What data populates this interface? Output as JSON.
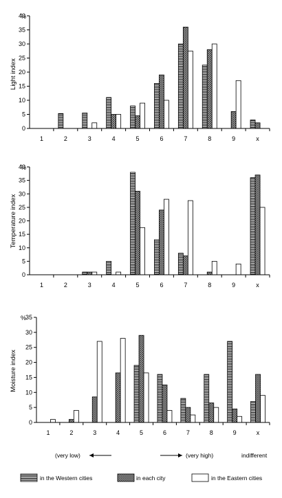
{
  "chart_data": [
    {
      "type": "bar",
      "ylabel": "Light index",
      "unit_label": "%",
      "ylim": [
        0,
        40
      ],
      "yticks": [
        0,
        5,
        10,
        15,
        20,
        25,
        30,
        35,
        40
      ],
      "categories": [
        "1",
        "2",
        "3",
        "4",
        "5",
        "6",
        "7",
        "8",
        "9",
        "x"
      ],
      "series": [
        {
          "name": "in the Western cities",
          "values": [
            0,
            5.3,
            5.5,
            11,
            8,
            16,
            30,
            22.5,
            0,
            3
          ]
        },
        {
          "name": "in each city",
          "values": [
            0,
            0,
            0,
            5,
            4.5,
            19,
            36,
            28,
            6,
            2
          ]
        },
        {
          "name": "in the Eastern cities",
          "values": [
            0,
            0,
            2,
            5,
            9,
            10,
            27.5,
            30,
            17,
            0
          ]
        }
      ]
    },
    {
      "type": "bar",
      "ylabel": "Temperature index",
      "unit_label": "%",
      "ylim": [
        0,
        40
      ],
      "yticks": [
        0,
        5,
        10,
        15,
        20,
        25,
        30,
        35,
        40
      ],
      "categories": [
        "1",
        "2",
        "3",
        "4",
        "5",
        "6",
        "7",
        "8",
        "9",
        "x"
      ],
      "series": [
        {
          "name": "in the Western cities",
          "values": [
            0,
            0,
            1,
            5,
            38,
            13,
            8,
            0,
            0,
            36
          ]
        },
        {
          "name": "in each city",
          "values": [
            0,
            0,
            1,
            0,
            31,
            24,
            7,
            1,
            0,
            37
          ]
        },
        {
          "name": "in the Eastern cities",
          "values": [
            0,
            0,
            1,
            1,
            17.5,
            28,
            27.5,
            5,
            4,
            25
          ]
        }
      ]
    },
    {
      "type": "bar",
      "ylabel": "Moisture index",
      "unit_label": "%",
      "ylim": [
        0,
        35
      ],
      "yticks": [
        0,
        5,
        10,
        15,
        20,
        25,
        30,
        35
      ],
      "categories": [
        "1",
        "2",
        "3",
        "4",
        "5",
        "6",
        "7",
        "8",
        "9",
        "x"
      ],
      "series": [
        {
          "name": "in the Western cities",
          "values": [
            0,
            0,
            0,
            0,
            19,
            16,
            8,
            16,
            27,
            7
          ]
        },
        {
          "name": "in each city",
          "values": [
            0,
            1,
            8.5,
            16.5,
            29,
            12.5,
            5,
            6.5,
            4.5,
            16
          ]
        },
        {
          "name": "in the Eastern cities",
          "values": [
            1,
            4,
            27,
            28,
            16.5,
            4,
            2.5,
            5,
            2,
            9
          ]
        }
      ]
    }
  ],
  "annotations": {
    "very_low": "(very low)",
    "very_high": "(very high)",
    "indifferent": "indifferent"
  },
  "legend": [
    {
      "label": "in the Western cities",
      "pattern": "horizontal-stripes"
    },
    {
      "label": "in each city",
      "pattern": "crosshatch-gray"
    },
    {
      "label": "in the Eastern cities",
      "pattern": "white"
    }
  ]
}
